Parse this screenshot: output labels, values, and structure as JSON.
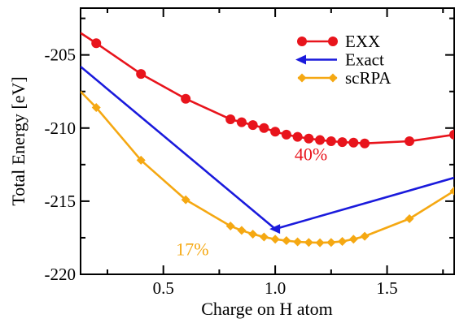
{
  "chart_data": {
    "type": "line",
    "title": "",
    "xlabel": "Charge on H atom",
    "ylabel": "Total Energy [eV]",
    "xlim": [
      0.13,
      1.8
    ],
    "ylim": [
      -220,
      -201.8
    ],
    "x_ticks": [
      0.5,
      1.0,
      1.5
    ],
    "x_tick_labels": [
      "0.5",
      "1.0",
      "1.5"
    ],
    "y_ticks": [
      -220,
      -215,
      -210,
      -205
    ],
    "y_tick_labels": [
      "-220",
      "-215",
      "-210",
      "-205"
    ],
    "grid": false,
    "legend_position": "top-right",
    "series": [
      {
        "name": "EXX",
        "color": "#e8141c",
        "marker": "circle",
        "start": [
          0.13,
          -203.5
        ],
        "end": [
          1.8,
          -210.5
        ],
        "points": [
          [
            0.2,
            -204.2
          ],
          [
            0.4,
            -206.3
          ],
          [
            0.6,
            -208.0
          ],
          [
            0.8,
            -209.4
          ],
          [
            0.85,
            -209.6
          ],
          [
            0.9,
            -209.8
          ],
          [
            0.95,
            -210.0
          ],
          [
            1.0,
            -210.25
          ],
          [
            1.05,
            -210.45
          ],
          [
            1.1,
            -210.6
          ],
          [
            1.15,
            -210.72
          ],
          [
            1.2,
            -210.82
          ],
          [
            1.25,
            -210.9
          ],
          [
            1.3,
            -210.96
          ],
          [
            1.35,
            -211.0
          ],
          [
            1.4,
            -211.05
          ],
          [
            1.6,
            -210.9
          ],
          [
            1.8,
            -210.45
          ]
        ]
      },
      {
        "name": "Exact",
        "color": "#1a1adc",
        "marker": "triangle-left",
        "start": [
          0.13,
          -205.8
        ],
        "end": [
          1.8,
          -213.4
        ],
        "points": [
          [
            1.0,
            -216.9
          ]
        ]
      },
      {
        "name": "scRPA",
        "color": "#f5a812",
        "marker": "diamond",
        "start": [
          0.13,
          -207.5
        ],
        "end": [
          1.8,
          -214.3
        ],
        "points": [
          [
            0.2,
            -208.6
          ],
          [
            0.4,
            -212.2
          ],
          [
            0.6,
            -214.9
          ],
          [
            0.8,
            -216.7
          ],
          [
            0.85,
            -217.0
          ],
          [
            0.9,
            -217.25
          ],
          [
            0.95,
            -217.45
          ],
          [
            1.0,
            -217.6
          ],
          [
            1.05,
            -217.7
          ],
          [
            1.1,
            -217.78
          ],
          [
            1.15,
            -217.82
          ],
          [
            1.2,
            -217.84
          ],
          [
            1.25,
            -217.82
          ],
          [
            1.3,
            -217.75
          ],
          [
            1.35,
            -217.6
          ],
          [
            1.4,
            -217.4
          ],
          [
            1.6,
            -216.2
          ],
          [
            1.8,
            -214.3
          ]
        ]
      }
    ],
    "annotations": [
      {
        "text": "40%",
        "x": 1.16,
        "y": -212.2,
        "color": "#e8141c"
      },
      {
        "text": "17%",
        "x": 0.63,
        "y": -218.7,
        "color": "#f5a812"
      }
    ]
  }
}
